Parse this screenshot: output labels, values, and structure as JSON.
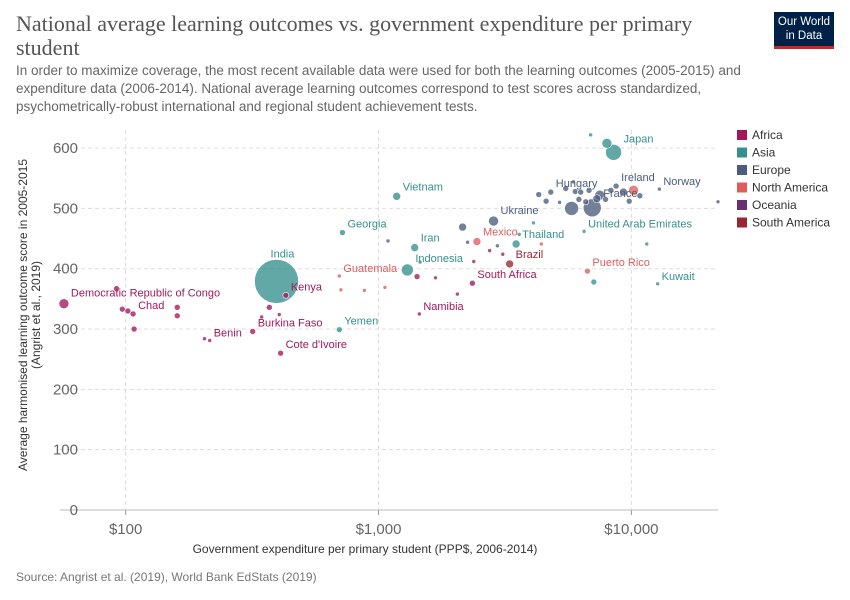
{
  "header": {
    "title": "National average learning outcomes vs. government expenditure per primary student",
    "subtitle": "In order to maximize coverage, the most recent available data were used for both the learning outcomes (2005-2015) and expenditure data (2006-2014). National average learning outcomes correspond to test scores across standardized, psychometrically-robust international and regional student achievement tests.",
    "logo_line1": "Our World",
    "logo_line2": "in Data"
  },
  "footer": {
    "source": "Source: Angrist et al. (2019), World Bank EdStats (2019)"
  },
  "colors": {
    "Africa": "#a2185b",
    "Asia": "#34908e",
    "Europe": "#4c5c7c",
    "North America": "#e05c5c",
    "Oceania": "#6b2e74",
    "South America": "#9a2634"
  },
  "chart_data": {
    "type": "scatter",
    "xscale": "log",
    "xlabel": "Government expenditure per primary student (PPP$, 2006-2014)",
    "ylabel": "Average harmonised learning outcome score in 2005-2015 (Angrist et al., 2019)",
    "xlim": [
      55,
      22000
    ],
    "ylim": [
      0,
      630
    ],
    "xticks": [
      100,
      1000,
      10000
    ],
    "xtick_labels": [
      "$100",
      "$1,000",
      "$10,000"
    ],
    "yticks": [
      0,
      100,
      200,
      300,
      400,
      500,
      600
    ],
    "grid": true,
    "legend_position": "right",
    "legend": [
      "Africa",
      "Asia",
      "Europe",
      "North America",
      "Oceania",
      "South America"
    ],
    "points": [
      {
        "x": 57,
        "y": 342,
        "s": 5,
        "r": "Africa",
        "label": "Democratic Republic of Congo"
      },
      {
        "x": 92,
        "y": 367,
        "s": 3,
        "r": "Africa"
      },
      {
        "x": 97,
        "y": 333,
        "s": 3,
        "r": "Africa"
      },
      {
        "x": 102,
        "y": 330,
        "s": 3,
        "r": "Africa"
      },
      {
        "x": 107,
        "y": 325,
        "s": 3,
        "r": "Africa",
        "label": "Chad"
      },
      {
        "x": 108,
        "y": 300,
        "s": 3,
        "r": "Africa"
      },
      {
        "x": 160,
        "y": 336,
        "s": 3,
        "r": "Africa"
      },
      {
        "x": 160,
        "y": 322,
        "s": 3,
        "r": "Africa"
      },
      {
        "x": 205,
        "y": 284,
        "s": 2,
        "r": "Africa"
      },
      {
        "x": 215,
        "y": 281,
        "s": 2,
        "r": "Africa",
        "label": "Benin"
      },
      {
        "x": 318,
        "y": 296,
        "s": 3,
        "r": "Africa",
        "label": "Burkina Faso"
      },
      {
        "x": 345,
        "y": 320,
        "s": 2,
        "r": "Africa"
      },
      {
        "x": 370,
        "y": 336,
        "s": 3,
        "r": "Africa"
      },
      {
        "x": 405,
        "y": 324,
        "s": 2,
        "r": "Africa"
      },
      {
        "x": 410,
        "y": 260,
        "s": 3,
        "r": "Africa",
        "label": "Cote d'Ivoire"
      },
      {
        "x": 430,
        "y": 356,
        "s": 3,
        "r": "Africa",
        "label": "Kenya"
      },
      {
        "x": 395,
        "y": 379,
        "s": 22,
        "r": "Asia",
        "label": "India"
      },
      {
        "x": 700,
        "y": 299,
        "s": 3,
        "r": "Asia",
        "label": "Yemen"
      },
      {
        "x": 700,
        "y": 388,
        "s": 2,
        "r": "North America",
        "label": "Guatemala"
      },
      {
        "x": 720,
        "y": 460,
        "s": 3,
        "r": "Asia",
        "label": "Georgia"
      },
      {
        "x": 710,
        "y": 365,
        "s": 2,
        "r": "North America"
      },
      {
        "x": 880,
        "y": 364,
        "s": 2,
        "r": "North America"
      },
      {
        "x": 1060,
        "y": 369,
        "s": 2,
        "r": "North America"
      },
      {
        "x": 1090,
        "y": 446,
        "s": 2,
        "r": "Europe"
      },
      {
        "x": 1180,
        "y": 520,
        "s": 4,
        "r": "Asia",
        "label": "Vietnam"
      },
      {
        "x": 1300,
        "y": 398,
        "s": 6,
        "r": "Asia",
        "label": "Indonesia"
      },
      {
        "x": 1390,
        "y": 435,
        "s": 4,
        "r": "Asia",
        "label": "Iran"
      },
      {
        "x": 1420,
        "y": 387,
        "s": 3,
        "r": "Africa"
      },
      {
        "x": 1450,
        "y": 325,
        "s": 2,
        "r": "Africa",
        "label": "Namibia"
      },
      {
        "x": 1460,
        "y": 411,
        "s": 2,
        "r": "Asia"
      },
      {
        "x": 1680,
        "y": 385,
        "s": 2,
        "r": "Africa"
      },
      {
        "x": 2050,
        "y": 358,
        "s": 2,
        "r": "South America"
      },
      {
        "x": 2150,
        "y": 469,
        "s": 4,
        "r": "Europe"
      },
      {
        "x": 2250,
        "y": 444,
        "s": 2,
        "r": "Europe"
      },
      {
        "x": 2350,
        "y": 376,
        "s": 3,
        "r": "Africa",
        "label": "South Africa"
      },
      {
        "x": 2380,
        "y": 412,
        "s": 2,
        "r": "South America"
      },
      {
        "x": 2450,
        "y": 445,
        "s": 4,
        "r": "North America",
        "label": "Mexico"
      },
      {
        "x": 2750,
        "y": 430,
        "s": 2,
        "r": "South America"
      },
      {
        "x": 2850,
        "y": 479,
        "s": 5,
        "r": "Europe",
        "label": "Ukraine"
      },
      {
        "x": 2950,
        "y": 438,
        "s": 2,
        "r": "Europe"
      },
      {
        "x": 3100,
        "y": 424,
        "s": 2,
        "r": "South America"
      },
      {
        "x": 3300,
        "y": 408,
        "s": 4,
        "r": "South America",
        "label": "Brazil"
      },
      {
        "x": 3500,
        "y": 441,
        "s": 4,
        "r": "Asia",
        "label": "Thailand"
      },
      {
        "x": 3600,
        "y": 457,
        "s": 2,
        "r": "Asia"
      },
      {
        "x": 4100,
        "y": 476,
        "s": 2,
        "r": "Asia"
      },
      {
        "x": 4300,
        "y": 523,
        "s": 3,
        "r": "Europe"
      },
      {
        "x": 4400,
        "y": 441,
        "s": 2,
        "r": "North America"
      },
      {
        "x": 4600,
        "y": 512,
        "s": 3,
        "r": "Europe"
      },
      {
        "x": 4800,
        "y": 527,
        "s": 3,
        "r": "Europe",
        "label": "Hungary"
      },
      {
        "x": 5200,
        "y": 510,
        "s": 2,
        "r": "Europe"
      },
      {
        "x": 5500,
        "y": 533,
        "s": 3,
        "r": "Europe"
      },
      {
        "x": 5800,
        "y": 500,
        "s": 7,
        "r": "Europe"
      },
      {
        "x": 5900,
        "y": 544,
        "s": 2,
        "r": "Europe"
      },
      {
        "x": 6000,
        "y": 528,
        "s": 3,
        "r": "Europe"
      },
      {
        "x": 6200,
        "y": 515,
        "s": 3,
        "r": "Europe"
      },
      {
        "x": 6300,
        "y": 527,
        "s": 3,
        "r": "Europe"
      },
      {
        "x": 6500,
        "y": 462,
        "s": 2,
        "r": "Asia",
        "label": "United Arab Emirates"
      },
      {
        "x": 6600,
        "y": 511,
        "s": 3,
        "r": "Europe"
      },
      {
        "x": 6700,
        "y": 396,
        "s": 3,
        "r": "North America",
        "label": "Puerto Rico"
      },
      {
        "x": 6800,
        "y": 530,
        "s": 3,
        "r": "Europe"
      },
      {
        "x": 6900,
        "y": 622,
        "s": 2,
        "r": "Asia"
      },
      {
        "x": 7000,
        "y": 501,
        "s": 9,
        "r": "Europe",
        "label": "France"
      },
      {
        "x": 7100,
        "y": 378,
        "s": 3,
        "r": "Asia"
      },
      {
        "x": 7300,
        "y": 516,
        "s": 4,
        "r": "Europe"
      },
      {
        "x": 7500,
        "y": 522,
        "s": 5,
        "r": "Europe"
      },
      {
        "x": 7900,
        "y": 515,
        "s": 3,
        "r": "Europe"
      },
      {
        "x": 8000,
        "y": 608,
        "s": 5,
        "r": "Asia"
      },
      {
        "x": 8300,
        "y": 530,
        "s": 3,
        "r": "Europe"
      },
      {
        "x": 8500,
        "y": 593,
        "s": 8,
        "r": "Asia",
        "label": "Japan"
      },
      {
        "x": 8700,
        "y": 537,
        "s": 3,
        "r": "Europe",
        "label": "Ireland"
      },
      {
        "x": 9300,
        "y": 527,
        "s": 4,
        "r": "Europe"
      },
      {
        "x": 9800,
        "y": 512,
        "s": 3,
        "r": "Europe"
      },
      {
        "x": 10200,
        "y": 530,
        "s": 5,
        "r": "North America"
      },
      {
        "x": 10800,
        "y": 521,
        "s": 3,
        "r": "Europe"
      },
      {
        "x": 11500,
        "y": 441,
        "s": 2,
        "r": "Asia"
      },
      {
        "x": 12700,
        "y": 375,
        "s": 2,
        "r": "Asia",
        "label": "Kuwait"
      },
      {
        "x": 12900,
        "y": 532,
        "s": 2,
        "r": "Europe",
        "label": "Norway"
      },
      {
        "x": 22000,
        "y": 511,
        "s": 2,
        "r": "Europe"
      }
    ]
  }
}
